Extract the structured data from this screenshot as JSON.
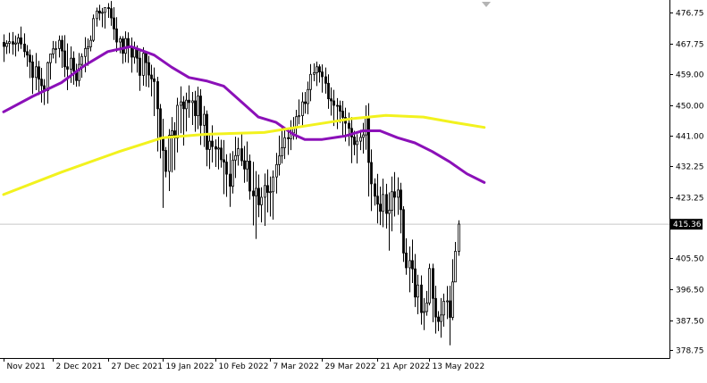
{
  "chart_data": {
    "type": "candlestick",
    "title": "",
    "xlabel": "",
    "ylabel": "",
    "ylim": [
      376.5,
      480.5
    ],
    "y_ticks": [
      {
        "value": 476.75,
        "label": "476.75"
      },
      {
        "value": 467.75,
        "label": "467.75"
      },
      {
        "value": 459.0,
        "label": "459.00"
      },
      {
        "value": 450.0,
        "label": "450.00"
      },
      {
        "value": 441.0,
        "label": "441.00"
      },
      {
        "value": 432.25,
        "label": "432.25"
      },
      {
        "value": 423.25,
        "label": "423.25"
      },
      {
        "value": 405.5,
        "label": "405.50"
      },
      {
        "value": 396.5,
        "label": "396.50"
      },
      {
        "value": 387.5,
        "label": "387.50"
      },
      {
        "value": 378.75,
        "label": "378.75"
      }
    ],
    "x_ticks": [
      "Nov 2021",
      "2 Dec 2021",
      "27 Dec 2021",
      "19 Jan 2022",
      "10 Feb 2022",
      "7 Mar 2022",
      "29 Mar 2022",
      "21 Apr 2022",
      "13 May 2022"
    ],
    "x_tick_index": [
      0,
      17,
      36,
      55,
      73,
      92,
      110,
      129,
      147
    ],
    "current_price": {
      "value": 415.36,
      "label": "415.36"
    },
    "grid": false,
    "colors": {
      "candle": "#000000",
      "ma_fast": "#8b10b8",
      "ma_slow": "#f2f21e",
      "price_line": "#c8c8c8",
      "price_label_bg": "#000000",
      "price_label_text": "#ffffff",
      "frame": "#000000"
    },
    "candles": {
      "open": [
        468.2,
        467.0,
        467.9,
        468.4,
        467.7,
        468.0,
        469.5,
        467.7,
        465.5,
        464.5,
        462.5,
        458.0,
        461.1,
        457.5,
        455.6,
        454.2,
        462.3,
        464.8,
        466.3,
        466.4,
        468.8,
        465.7,
        461.1,
        460.4,
        463.6,
        459.8,
        457.1,
        461.8,
        464.1,
        466.4,
        466.9,
        468.8,
        475.1,
        477.3,
        476.7,
        476.9,
        478.3,
        478.0,
        475.3,
        472.1,
        468.3,
        469.2,
        465.0,
        469.3,
        467.0,
        463.9,
        466.5,
        463.6,
        458.6,
        465.0,
        462.3,
        458.7,
        457.6,
        456.8,
        448.9,
        440.7,
        436.8,
        430.7,
        441.2,
        442.5,
        440.4,
        449.9,
        450.9,
        448.9,
        451.4,
        450.7,
        451.2,
        446.9,
        452.6,
        444.1,
        447.3,
        437.1,
        439.5,
        437.9,
        437.2,
        437.5,
        434.1,
        433.4,
        429.9,
        426.4,
        434.0,
        435.3,
        437.3,
        433.8,
        431.4,
        433.7,
        425.0,
        423.6,
        425.8,
        421.0,
        423.2,
        426.6,
        424.6,
        424.8,
        429.1,
        432.7,
        435.2,
        437.6,
        440.5,
        440.2,
        441.9,
        443.4,
        446.6,
        446.9,
        450.9,
        450.4,
        454.5,
        458.9,
        459.4,
        461.1,
        459.6,
        458.2,
        456.3,
        451.8,
        451.2,
        449.9,
        449.8,
        448.2,
        446.4,
        444.7,
        443.2,
        440.7,
        438.5,
        439.5,
        440.6,
        441.3,
        446.6,
        433.3,
        427.1,
        423.5,
        421.2,
        419.1,
        424.0,
        418.5,
        419.4,
        424.8,
        423.2,
        425.3,
        419.6,
        407.0,
        402.7,
        404.8,
        402.4,
        394.2,
        397.7,
        389.7,
        390.0,
        392.5,
        402.5,
        393.8,
        388.4,
        387.1,
        389.0,
        393.0,
        393.1,
        388.3,
        398.6,
        407.5
      ],
      "high": [
        470.5,
        468.8,
        471.0,
        471.2,
        470.2,
        470.7,
        472.8,
        470.8,
        467.4,
        466.1,
        464.5,
        465.1,
        462.8,
        460.8,
        457.5,
        462.6,
        464.8,
        468.6,
        468.5,
        470.2,
        470.2,
        470.3,
        467.9,
        467.0,
        465.6,
        462.0,
        465.1,
        465.0,
        469.7,
        469.3,
        470.2,
        476.3,
        478.3,
        479.1,
        478.2,
        478.2,
        479.6,
        480.2,
        478.4,
        475.5,
        470.0,
        470.0,
        471.4,
        471.1,
        469.6,
        468.4,
        467.3,
        466.3,
        466.8,
        465.1,
        464.3,
        461.7,
        460.9,
        458.2,
        450.3,
        446.0,
        437.8,
        443.0,
        446.5,
        445.0,
        452.1,
        455.4,
        452.6,
        453.6,
        455.7,
        453.8,
        454.1,
        455.3,
        454.6,
        449.7,
        448.4,
        441.7,
        444.1,
        440.0,
        440.8,
        439.9,
        439.8,
        435.7,
        436.0,
        436.6,
        440.8,
        440.5,
        441.8,
        438.1,
        439.4,
        435.6,
        433.5,
        430.8,
        429.8,
        426.1,
        430.1,
        431.3,
        429.2,
        431.0,
        436.1,
        441.1,
        443.3,
        442.8,
        442.4,
        445.6,
        446.5,
        448.6,
        451.6,
        453.7,
        453.8,
        456.8,
        461.9,
        462.1,
        462.6,
        461.8,
        461.8,
        460.9,
        458.9,
        455.1,
        454.4,
        452.0,
        451.3,
        451.2,
        449.2,
        447.8,
        446.5,
        442.5,
        441.5,
        442.8,
        444.8,
        449.9,
        450.5,
        437.1,
        428.7,
        430.0,
        426.3,
        428.6,
        427.1,
        424.6,
        429.2,
        430.5,
        429.0,
        427.4,
        420.6,
        411.3,
        408.9,
        410.9,
        406.7,
        400.7,
        400.5,
        393.9,
        396.0,
        403.9,
        403.9,
        397.5,
        390.1,
        393.9,
        395.2,
        397.4,
        397.5,
        405.2,
        410.2,
        416.5
      ],
      "low": [
        462.5,
        464.8,
        465.0,
        464.6,
        464.1,
        465.6,
        466.3,
        463.8,
        461.1,
        457.8,
        453.2,
        454.3,
        452.9,
        450.7,
        450.0,
        450.4,
        457.4,
        463.5,
        462.1,
        463.8,
        460.8,
        458.1,
        454.3,
        456.4,
        455.9,
        455.3,
        455.4,
        457.9,
        459.5,
        461.4,
        465.6,
        468.3,
        472.8,
        474.6,
        472.6,
        472.2,
        475.3,
        473.0,
        468.9,
        465.4,
        465.0,
        462.0,
        462.4,
        462.2,
        459.4,
        462.0,
        459.4,
        454.1,
        455.6,
        455.3,
        455.1,
        452.5,
        446.8,
        436.5,
        434.5,
        420.1,
        429.0,
        425.0,
        430.4,
        431.1,
        436.2,
        441.8,
        438.2,
        442.3,
        446.3,
        444.2,
        442.2,
        443.0,
        438.4,
        437.8,
        432.2,
        431.4,
        433.3,
        432.0,
        431.3,
        431.8,
        424.1,
        423.3,
        420.4,
        424.3,
        428.8,
        432.4,
        432.3,
        427.4,
        427.7,
        422.5,
        415.0,
        411.1,
        417.4,
        415.9,
        414.9,
        418.8,
        417.6,
        416.7,
        424.3,
        429.5,
        433.0,
        434.3,
        435.5,
        436.9,
        439.9,
        440.0,
        444.4,
        443.8,
        447.5,
        447.3,
        451.1,
        456.9,
        455.5,
        456.5,
        453.6,
        453.3,
        448.9,
        446.9,
        443.9,
        443.0,
        444.8,
        441.0,
        439.4,
        438.1,
        433.1,
        435.4,
        433.0,
        436.9,
        435.9,
        437.0,
        423.4,
        419.2,
        420.8,
        415.6,
        415.1,
        414.5,
        414.1,
        407.7,
        413.3,
        417.6,
        418.1,
        412.7,
        404.4,
        400.7,
        395.6,
        398.3,
        391.3,
        389.2,
        386.2,
        384.6,
        388.8,
        391.8,
        386.9,
        383.6,
        384.3,
        382.4,
        385.6,
        387.8,
        380.2,
        387.5,
        398.9,
        406.2
      ],
      "close": [
        467.0,
        467.9,
        468.4,
        467.7,
        468.0,
        469.5,
        467.7,
        465.5,
        464.5,
        462.5,
        458.0,
        461.1,
        457.5,
        455.6,
        454.2,
        462.3,
        464.8,
        466.3,
        466.4,
        468.8,
        465.7,
        461.1,
        460.4,
        463.6,
        459.8,
        457.1,
        461.8,
        464.1,
        466.4,
        466.9,
        468.8,
        475.1,
        477.3,
        476.7,
        476.9,
        478.3,
        478.0,
        475.3,
        472.1,
        468.3,
        469.2,
        465.0,
        469.3,
        467.0,
        463.9,
        466.5,
        463.6,
        458.6,
        465.0,
        462.3,
        458.7,
        457.6,
        456.8,
        448.9,
        440.7,
        436.8,
        430.7,
        441.2,
        442.5,
        440.4,
        449.9,
        450.9,
        448.9,
        451.4,
        450.7,
        451.2,
        446.9,
        452.6,
        444.1,
        447.3,
        437.1,
        439.5,
        437.9,
        437.2,
        437.5,
        434.1,
        433.4,
        429.9,
        426.4,
        434.0,
        435.3,
        437.3,
        433.8,
        431.4,
        433.7,
        425.0,
        423.6,
        425.8,
        421.0,
        423.2,
        426.6,
        424.6,
        424.8,
        429.1,
        432.7,
        435.2,
        437.6,
        440.5,
        440.2,
        441.9,
        443.4,
        446.6,
        446.9,
        450.9,
        450.4,
        454.5,
        458.9,
        459.4,
        461.1,
        459.6,
        458.2,
        456.3,
        451.8,
        451.2,
        449.9,
        449.8,
        448.2,
        446.4,
        444.7,
        443.2,
        440.7,
        438.5,
        439.5,
        440.6,
        441.3,
        446.6,
        433.3,
        427.1,
        423.5,
        421.2,
        419.1,
        424.0,
        418.5,
        419.4,
        424.8,
        423.2,
        425.3,
        419.6,
        407.0,
        402.7,
        404.8,
        402.4,
        394.2,
        397.7,
        389.7,
        390.0,
        392.5,
        402.5,
        393.8,
        388.4,
        387.1,
        389.0,
        393.0,
        393.1,
        388.3,
        398.6,
        407.5,
        415.4
      ]
    },
    "series": [
      {
        "kind": "ma_fast",
        "points": [
          [
            0,
            448.0
          ],
          [
            10,
            452.5
          ],
          [
            20,
            456.5
          ],
          [
            28,
            461.5
          ],
          [
            36,
            465.5
          ],
          [
            44,
            467.0
          ],
          [
            52,
            464.5
          ],
          [
            58,
            461.0
          ],
          [
            64,
            458.0
          ],
          [
            70,
            457.0
          ],
          [
            76,
            455.5
          ],
          [
            82,
            451.0
          ],
          [
            88,
            446.5
          ],
          [
            94,
            445.0
          ],
          [
            100,
            441.5
          ],
          [
            104,
            440.0
          ],
          [
            110,
            440.0
          ],
          [
            118,
            441.0
          ],
          [
            124,
            442.5
          ],
          [
            130,
            442.5
          ],
          [
            136,
            440.5
          ],
          [
            142,
            439.0
          ],
          [
            148,
            436.5
          ],
          [
            154,
            433.5
          ],
          [
            160,
            430.0
          ],
          [
            166,
            427.5
          ]
        ]
      },
      {
        "kind": "ma_slow",
        "points": [
          [
            0,
            424.0
          ],
          [
            20,
            430.5
          ],
          [
            40,
            436.5
          ],
          [
            55,
            440.5
          ],
          [
            70,
            441.5
          ],
          [
            90,
            442.0
          ],
          [
            105,
            444.0
          ],
          [
            120,
            446.0
          ],
          [
            132,
            447.0
          ],
          [
            145,
            446.5
          ],
          [
            155,
            445.0
          ],
          [
            166,
            443.5
          ]
        ]
      }
    ]
  }
}
